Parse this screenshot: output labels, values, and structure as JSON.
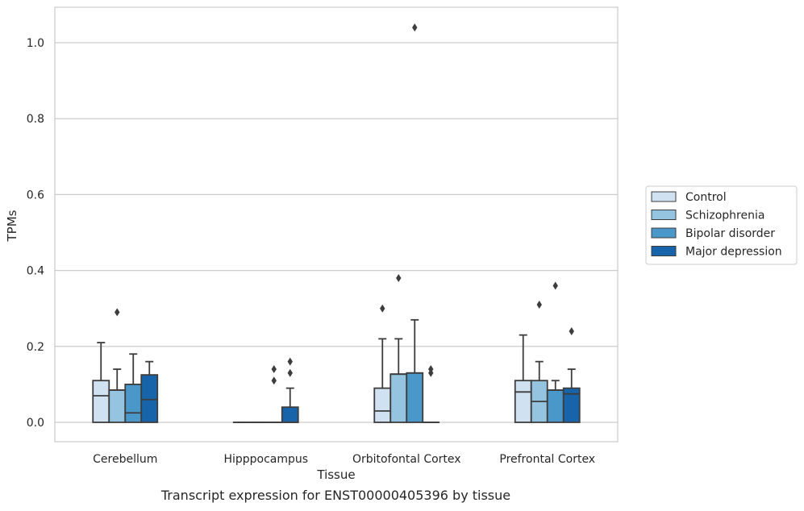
{
  "chart_data": {
    "type": "box",
    "xlabel": "Tissue",
    "ylabel": "TPMs",
    "ylim": [
      -0.05,
      1.09
    ],
    "yticks": [
      0.0,
      0.2,
      0.4,
      0.6,
      0.8,
      1.0
    ],
    "ytick_labels": [
      "0.0",
      "0.2",
      "0.4",
      "0.6",
      "0.8",
      "1.0"
    ],
    "grid": "horizontal",
    "legend_position": "right",
    "categories": [
      "Cerebellum",
      "Hipppocampus",
      "Orbitofontal Cortex",
      "Prefrontal Cortex"
    ],
    "series": [
      {
        "name": "Control",
        "color": "#d0e1f2",
        "boxes": [
          {
            "q1": 0.0,
            "median": 0.07,
            "q3": 0.11,
            "whislo": 0.0,
            "whishi": 0.21,
            "fliers": []
          },
          {
            "q1": 0.0,
            "median": 0.0,
            "q3": 0.0,
            "whislo": 0.0,
            "whishi": 0.0,
            "fliers": []
          },
          {
            "q1": 0.0,
            "median": 0.03,
            "q3": 0.09,
            "whislo": 0.0,
            "whishi": 0.22,
            "fliers": [
              0.3
            ]
          },
          {
            "q1": 0.0,
            "median": 0.08,
            "q3": 0.11,
            "whislo": 0.0,
            "whishi": 0.23,
            "fliers": []
          }
        ]
      },
      {
        "name": "Schizophrenia",
        "color": "#94c4df",
        "boxes": [
          {
            "q1": 0.0,
            "median": 0.085,
            "q3": 0.085,
            "whislo": 0.0,
            "whishi": 0.14,
            "fliers": [
              0.29
            ]
          },
          {
            "q1": 0.0,
            "median": 0.0,
            "q3": 0.0,
            "whislo": 0.0,
            "whishi": 0.0,
            "fliers": []
          },
          {
            "q1": 0.0,
            "median": 0.127,
            "q3": 0.127,
            "whislo": 0.0,
            "whishi": 0.22,
            "fliers": [
              0.38
            ]
          },
          {
            "q1": 0.0,
            "median": 0.055,
            "q3": 0.11,
            "whislo": 0.0,
            "whishi": 0.16,
            "fliers": [
              0.31
            ]
          }
        ]
      },
      {
        "name": "Bipolar disorder",
        "color": "#4a98c9",
        "boxes": [
          {
            "q1": 0.0,
            "median": 0.025,
            "q3": 0.1,
            "whislo": 0.0,
            "whishi": 0.18,
            "fliers": []
          },
          {
            "q1": 0.0,
            "median": 0.0,
            "q3": 0.0,
            "whislo": 0.0,
            "whishi": 0.0,
            "fliers": [
              0.11,
              0.14
            ]
          },
          {
            "q1": 0.0,
            "median": 0.13,
            "q3": 0.13,
            "whislo": 0.0,
            "whishi": 0.27,
            "fliers": [
              1.04
            ]
          },
          {
            "q1": 0.0,
            "median": 0.085,
            "q3": 0.085,
            "whislo": 0.0,
            "whishi": 0.11,
            "fliers": [
              0.36
            ]
          }
        ]
      },
      {
        "name": "Major depression",
        "color": "#1764ab",
        "boxes": [
          {
            "q1": 0.0,
            "median": 0.06,
            "q3": 0.125,
            "whislo": 0.0,
            "whishi": 0.16,
            "fliers": []
          },
          {
            "q1": 0.0,
            "median": 0.0,
            "q3": 0.04,
            "whislo": 0.0,
            "whishi": 0.09,
            "fliers": [
              0.13,
              0.16
            ]
          },
          {
            "q1": 0.0,
            "median": 0.0,
            "q3": 0.0,
            "whislo": 0.0,
            "whishi": 0.0,
            "fliers": [
              0.13,
              0.14
            ]
          },
          {
            "q1": 0.0,
            "median": 0.075,
            "q3": 0.09,
            "whislo": 0.0,
            "whishi": 0.14,
            "fliers": [
              0.24
            ]
          }
        ]
      }
    ]
  },
  "caption": "Transcript expression for ENST00000405396 by tissue",
  "colors": {
    "grid": "#cccccc",
    "frame": "#cccccc",
    "line": "#3d3d3d"
  }
}
